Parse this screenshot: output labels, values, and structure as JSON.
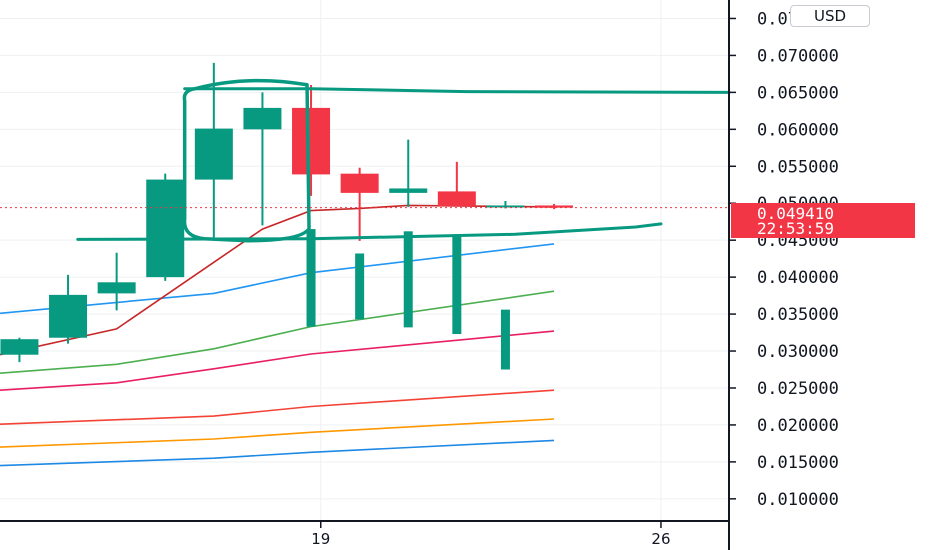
{
  "currency": "USD",
  "colors": {
    "up": "#089981",
    "down": "#f23645",
    "grid": "#eef0f3",
    "axis": "#131722",
    "drawing": "#089981",
    "ma": [
      "#2962ff",
      "#4caf50",
      "#e91e63",
      "#f44336",
      "#ff9800",
      "#1e88e5",
      "#b71c1c"
    ]
  },
  "chart_data": {
    "type": "candlestick",
    "y_range": [
      0.007,
      0.0775
    ],
    "y_ticks": [
      "0.010000",
      "0.015000",
      "0.020000",
      "0.025000",
      "0.030000",
      "0.035000",
      "0.040000",
      "0.045000",
      "0.050000",
      "0.055000",
      "0.060000",
      "0.065000",
      "0.070000",
      "0.075000"
    ],
    "x_range": [
      12.4,
      27.4
    ],
    "x_ticks": [
      {
        "day": 19,
        "label": "19"
      },
      {
        "day": 26,
        "label": "26"
      }
    ],
    "candles": [
      {
        "day": 12.8,
        "open": 0.0295,
        "high": 0.0318,
        "low": 0.0285,
        "close": 0.0316
      },
      {
        "day": 13.8,
        "open": 0.0318,
        "high": 0.0403,
        "low": 0.031,
        "close": 0.0376
      },
      {
        "day": 14.8,
        "open": 0.0378,
        "high": 0.0433,
        "low": 0.0355,
        "close": 0.0393
      },
      {
        "day": 15.8,
        "open": 0.04,
        "high": 0.054,
        "low": 0.0395,
        "close": 0.0532
      },
      {
        "day": 16.8,
        "open": 0.0532,
        "high": 0.069,
        "low": 0.0453,
        "close": 0.0601
      },
      {
        "day": 17.8,
        "open": 0.06,
        "high": 0.065,
        "low": 0.047,
        "close": 0.0629
      },
      {
        "day": 18.8,
        "open": 0.0629,
        "high": 0.066,
        "low": 0.051,
        "close": 0.0539
      },
      {
        "day": 19.8,
        "open": 0.054,
        "high": 0.0548,
        "low": 0.0449,
        "close": 0.0514
      },
      {
        "day": 20.8,
        "open": 0.0514,
        "high": 0.0586,
        "low": 0.0495,
        "close": 0.052
      },
      {
        "day": 21.8,
        "open": 0.0516,
        "high": 0.0556,
        "low": 0.0496,
        "close": 0.0496
      },
      {
        "day": 22.8,
        "open": 0.0496,
        "high": 0.0503,
        "low": 0.0493,
        "close": 0.0497
      },
      {
        "day": 23.8,
        "open": 0.0497,
        "high": 0.0499,
        "low": 0.0492,
        "close": 0.0494
      }
    ],
    "volume_bars": [
      {
        "day": 18.8,
        "top": 0.0465,
        "bottom": 0.0333
      },
      {
        "day": 19.8,
        "top": 0.0432,
        "bottom": 0.0343
      },
      {
        "day": 20.8,
        "top": 0.0462,
        "bottom": 0.0332
      },
      {
        "day": 21.8,
        "top": 0.0458,
        "bottom": 0.0323
      },
      {
        "day": 22.8,
        "top": 0.0356,
        "bottom": 0.0275
      }
    ],
    "moving_averages": [
      {
        "color": "#2196f3",
        "points": [
          [
            12.4,
            0.0351
          ],
          [
            16.8,
            0.0378
          ],
          [
            18.8,
            0.0406
          ],
          [
            23.8,
            0.0445
          ]
        ]
      },
      {
        "color": "#4caf50",
        "points": [
          [
            12.4,
            0.027
          ],
          [
            14.8,
            0.0282
          ],
          [
            16.8,
            0.0303
          ],
          [
            18.8,
            0.0333
          ],
          [
            23.8,
            0.0381
          ]
        ]
      },
      {
        "color": "#e91e63",
        "points": [
          [
            12.4,
            0.0247
          ],
          [
            14.8,
            0.0257
          ],
          [
            16.8,
            0.0276
          ],
          [
            18.8,
            0.0296
          ],
          [
            23.8,
            0.0327
          ]
        ]
      },
      {
        "color": "#f44336",
        "points": [
          [
            12.4,
            0.0201
          ],
          [
            16.8,
            0.0212
          ],
          [
            18.8,
            0.0225
          ],
          [
            23.8,
            0.0247
          ]
        ]
      },
      {
        "color": "#ff9800",
        "points": [
          [
            12.4,
            0.017
          ],
          [
            16.8,
            0.0181
          ],
          [
            18.8,
            0.019
          ],
          [
            23.8,
            0.0208
          ]
        ]
      },
      {
        "color": "#1e88e5",
        "points": [
          [
            12.4,
            0.0145
          ],
          [
            16.8,
            0.0155
          ],
          [
            18.8,
            0.0163
          ],
          [
            23.8,
            0.0179
          ]
        ]
      },
      {
        "color": "#c62828",
        "points": [
          [
            12.4,
            0.0295
          ],
          [
            14.8,
            0.033
          ],
          [
            16.8,
            0.042
          ],
          [
            17.8,
            0.0465
          ],
          [
            18.8,
            0.049
          ],
          [
            19.8,
            0.0493
          ],
          [
            20.8,
            0.0497
          ],
          [
            23.8,
            0.0495
          ]
        ]
      }
    ],
    "drawing": {
      "rectangle": {
        "x1": 16.2,
        "x2": 18.8,
        "y_top": 0.0663,
        "y_bottom": 0.0452
      },
      "upper_line": [
        [
          16.2,
          0.0655
        ],
        [
          18.8,
          0.0655
        ],
        [
          22.0,
          0.0651
        ],
        [
          27.4,
          0.065
        ]
      ],
      "lower_line": [
        [
          14.0,
          0.0451
        ],
        [
          18.8,
          0.0452
        ],
        [
          23.0,
          0.0458
        ],
        [
          25.5,
          0.0468
        ],
        [
          26.0,
          0.0472
        ]
      ]
    },
    "last_price": {
      "value": 0.04941,
      "label": "0.049410",
      "countdown": "22:53:59"
    }
  }
}
